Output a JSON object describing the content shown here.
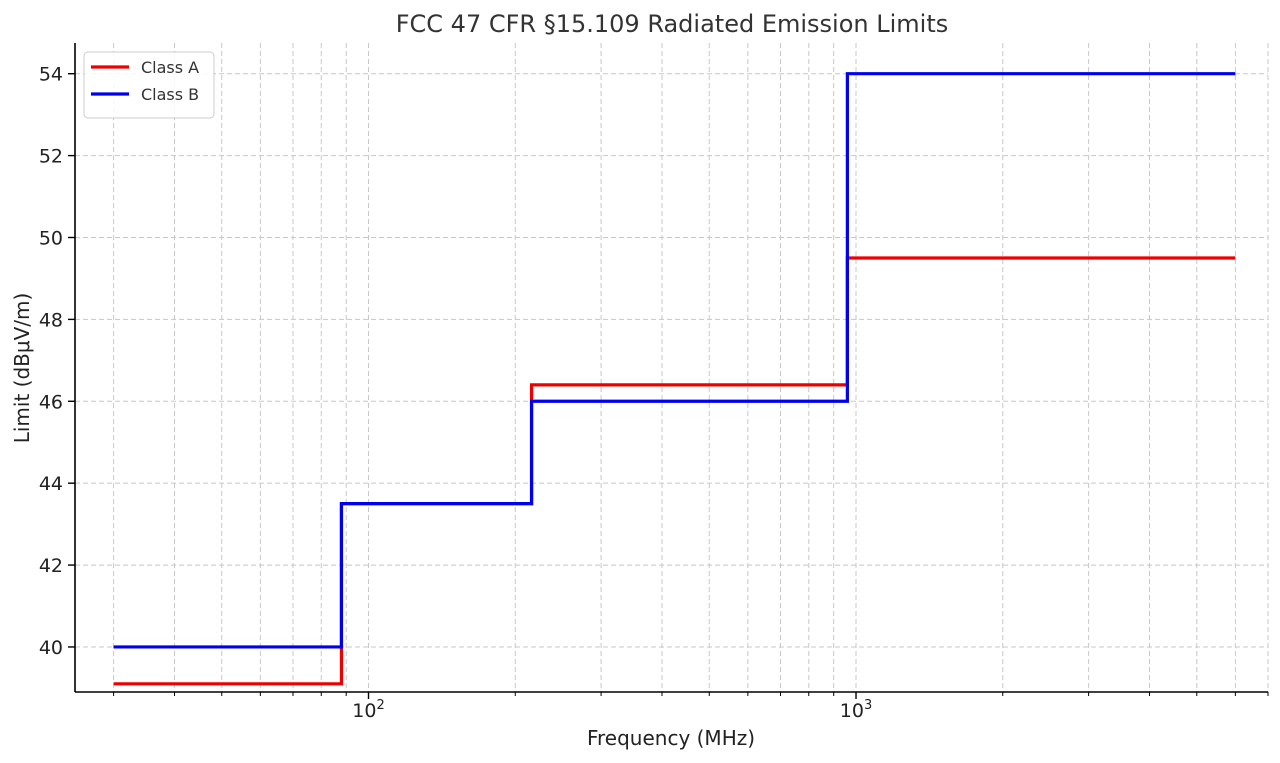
{
  "chart_data": {
    "type": "line",
    "title": "FCC 47 CFR §15.109 Radiated Emission Limits",
    "xlabel": "Frequency (MHz)",
    "ylabel": "Limit (dBμV/m)",
    "xscale": "log",
    "xlim": [
      25,
      7000
    ],
    "ylim": [
      38.9,
      54.75
    ],
    "x_ticks": [
      {
        "value": 100,
        "base": "10",
        "exp": "2"
      },
      {
        "value": 1000,
        "base": "10",
        "exp": "3"
      }
    ],
    "y_ticks": [
      40,
      42,
      44,
      46,
      48,
      50,
      52,
      54
    ],
    "grid": true,
    "legend_position": "top-left",
    "step": "post",
    "series": [
      {
        "name": "Class A",
        "color": "#ee0000",
        "x": [
          30,
          88,
          216,
          960,
          6000
        ],
        "y": [
          39.1,
          43.5,
          46.4,
          49.5,
          49.5
        ]
      },
      {
        "name": "Class B",
        "color": "#0000ee",
        "x": [
          30,
          88,
          216,
          960,
          6000
        ],
        "y": [
          40.0,
          43.5,
          46.0,
          54.0,
          54.0
        ]
      }
    ]
  }
}
